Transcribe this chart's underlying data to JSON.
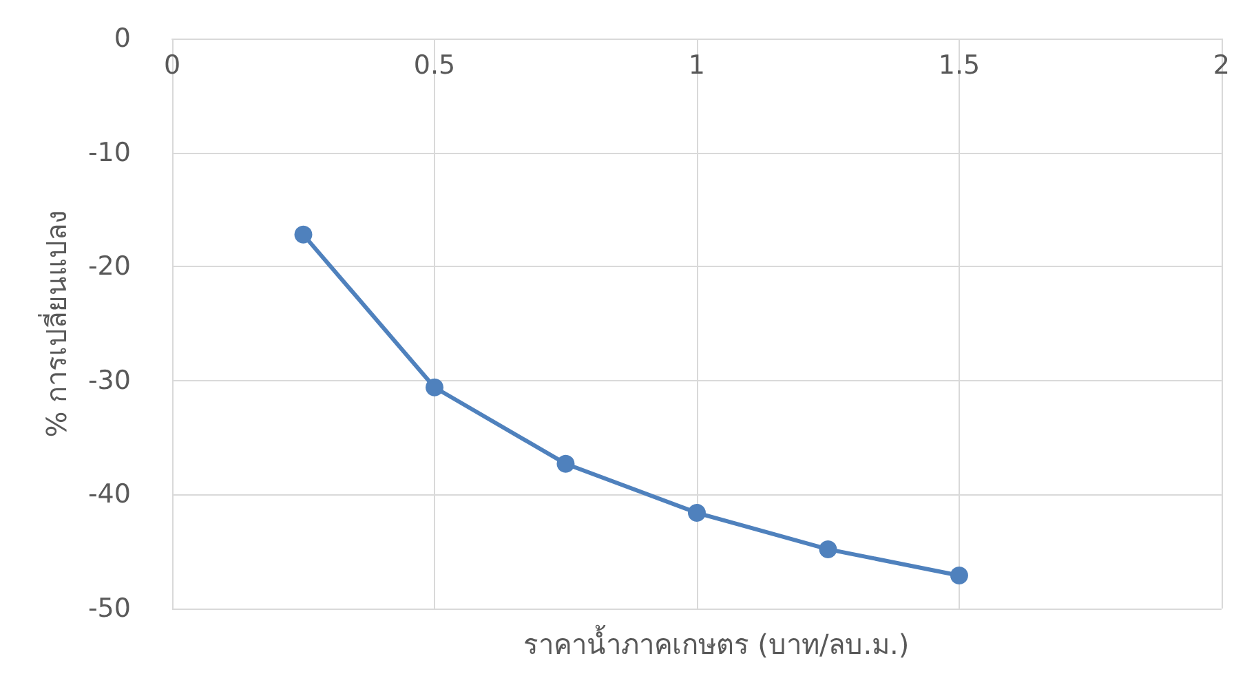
{
  "chart_data": {
    "type": "line",
    "xlabel": "ราคาน้ำภาคเกษตร (บาท/ลบ.ม.)",
    "ylabel": "% การเปลี่ยนแปลง",
    "x": [
      0.25,
      0.5,
      0.75,
      1,
      1.25,
      1.5
    ],
    "series": [
      {
        "color": "#4f81bd",
        "values": [
          -17.2,
          -30.6,
          -37.3,
          -41.6,
          -44.8,
          -47.1
        ]
      }
    ],
    "xlim": [
      0,
      2
    ],
    "xticks": [
      0,
      0.5,
      1,
      1.5,
      2
    ],
    "ylim": [
      -50,
      0
    ],
    "yticks": [
      -50,
      -40,
      -30,
      -20,
      -10,
      0
    ],
    "grid": true,
    "marker": "circle",
    "line_style": "solid"
  }
}
